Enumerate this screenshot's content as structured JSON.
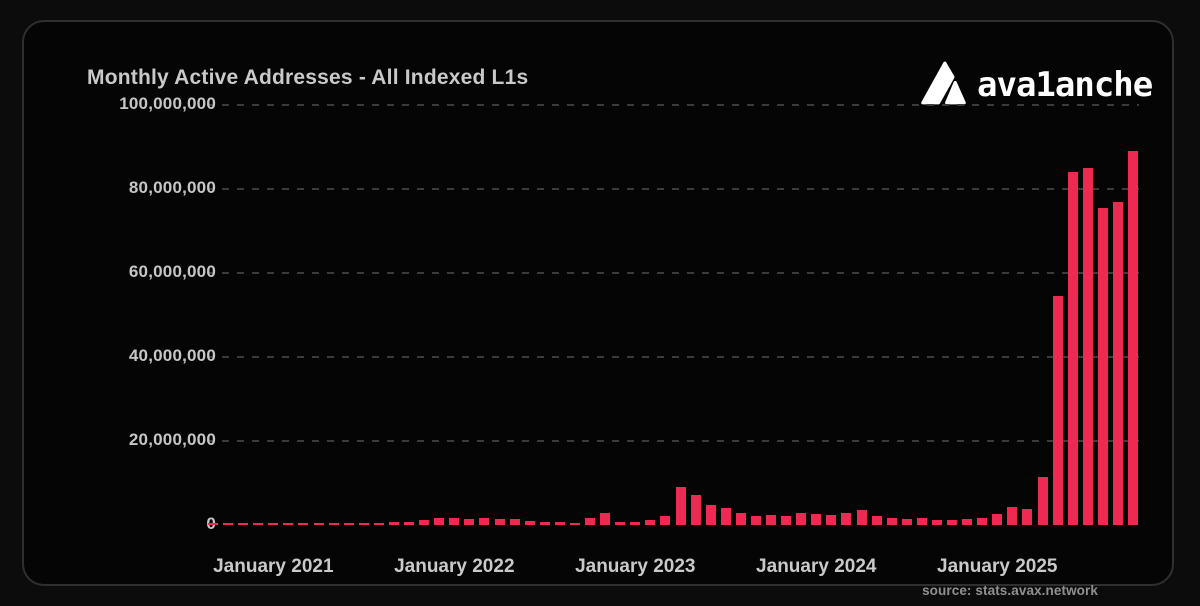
{
  "header": {
    "title": "Monthly Active Addresses - All Indexed L1s",
    "logo_text": "ava1anche"
  },
  "footer": {
    "source": "source: stats.avax.network"
  },
  "colors": {
    "bar": "#ee2a52",
    "background": "#0c0c0c",
    "panel_background": "#050505",
    "panel_border": "#2f2f2f",
    "gridline": "#3b3b3b",
    "text": "#c9c9c9",
    "logo": "#ffffff",
    "source_text": "#909090"
  },
  "chart_data": {
    "type": "bar",
    "title": "Monthly Active Addresses - All Indexed L1s",
    "xlabel": "",
    "ylabel": "",
    "ylim": [
      0,
      100000000
    ],
    "grid": "dashed-horizontal",
    "legend": "none",
    "bar_color": "#ee2a52",
    "x": [
      "2020-09",
      "2020-10",
      "2020-11",
      "2020-12",
      "2021-01",
      "2021-02",
      "2021-03",
      "2021-04",
      "2021-05",
      "2021-06",
      "2021-07",
      "2021-08",
      "2021-09",
      "2021-10",
      "2021-11",
      "2021-12",
      "2022-01",
      "2022-02",
      "2022-03",
      "2022-04",
      "2022-05",
      "2022-06",
      "2022-07",
      "2022-08",
      "2022-09",
      "2022-10",
      "2022-11",
      "2022-12",
      "2023-01",
      "2023-02",
      "2023-03",
      "2023-04",
      "2023-05",
      "2023-06",
      "2023-07",
      "2023-08",
      "2023-09",
      "2023-10",
      "2023-11",
      "2023-12",
      "2024-01",
      "2024-02",
      "2024-03",
      "2024-04",
      "2024-05",
      "2024-06",
      "2024-07",
      "2024-08",
      "2024-09",
      "2024-10",
      "2024-11",
      "2024-12",
      "2025-01",
      "2025-02",
      "2025-03",
      "2025-04",
      "2025-05",
      "2025-06",
      "2025-07",
      "2025-08",
      "2025-09",
      "2025-10"
    ],
    "values": [
      400000,
      400000,
      400000,
      400000,
      450000,
      450000,
      450000,
      450000,
      450000,
      400000,
      450000,
      500000,
      600000,
      700000,
      1100000,
      1700000,
      1700000,
      1350000,
      1700000,
      1350000,
      1350000,
      950000,
      750000,
      750000,
      550000,
      1700000,
      2900000,
      750000,
      700000,
      1200000,
      2100000,
      9000000,
      7100000,
      4700000,
      4000000,
      2900000,
      2200000,
      2500000,
      2200000,
      2900000,
      2700000,
      2500000,
      2900000,
      3600000,
      2200000,
      1700000,
      1500000,
      1700000,
      1200000,
      1200000,
      1400000,
      1700000,
      2600000,
      4300000,
      3900000,
      11400000,
      54500000,
      84000000,
      85000000,
      75500000,
      77000000,
      89000000
    ],
    "x_tick_labels": [
      {
        "label": "January 2021",
        "month_index": 4
      },
      {
        "label": "January 2022",
        "month_index": 16
      },
      {
        "label": "January 2023",
        "month_index": 28
      },
      {
        "label": "January 2024",
        "month_index": 40
      },
      {
        "label": "January 2025",
        "month_index": 52
      }
    ],
    "y_ticks": [
      {
        "value": 0,
        "label": "0"
      },
      {
        "value": 20000000,
        "label": "20,000,000"
      },
      {
        "value": 40000000,
        "label": "40,000,000"
      },
      {
        "value": 60000000,
        "label": "60,000,000"
      },
      {
        "value": 80000000,
        "label": "80,000,000"
      },
      {
        "value": 100000000,
        "label": "100,000,000"
      }
    ]
  }
}
